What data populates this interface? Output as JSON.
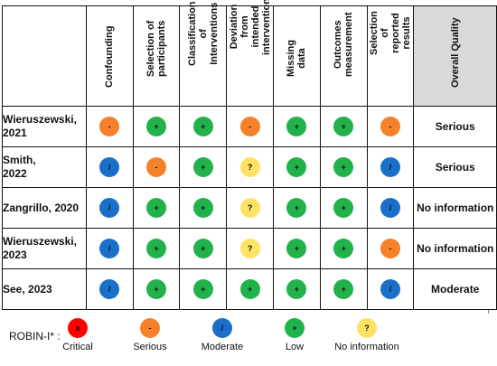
{
  "colors": {
    "critical": "#ff0000",
    "serious": "#f5822a",
    "moderate": "#1a6fc9",
    "low": "#22b24c",
    "no_information": "#fde265",
    "overall_header_bg": "#d9d9d9"
  },
  "columns": [
    "Confounding",
    "Selection of\nparticipants",
    "Classification of\nInterventions",
    "Deviation from\nintended\nintervention",
    "Missing data",
    "Outcomes\nmeasurement",
    "Selection of\nreported results"
  ],
  "overall_header": "Overall Quality",
  "studies": [
    {
      "name": "Wieruszewski,\n2021",
      "ratings": [
        "serious",
        "low",
        "low",
        "serious",
        "low",
        "low",
        "serious"
      ],
      "overall": "Serious"
    },
    {
      "name": "Smith,\n2022",
      "ratings": [
        "moderate",
        "serious",
        "low",
        "no_information",
        "low",
        "low",
        "moderate"
      ],
      "overall": "Serious"
    },
    {
      "name": "Zangrillo, 2020",
      "ratings": [
        "moderate",
        "low",
        "low",
        "no_information",
        "low",
        "low",
        "moderate"
      ],
      "overall": "No information"
    },
    {
      "name": "Wieruszewski,\n2023",
      "ratings": [
        "moderate",
        "low",
        "low",
        "no_information",
        "low",
        "low",
        "serious"
      ],
      "overall": "No information"
    },
    {
      "name": "See, 2023",
      "ratings": [
        "moderate",
        "low",
        "low",
        "low",
        "low",
        "low",
        "moderate"
      ],
      "overall": "Moderate"
    }
  ],
  "symbols": {
    "critical": "x",
    "serious": "-",
    "moderate": "/",
    "low": "+",
    "no_information": "?"
  },
  "legend": {
    "title": "ROBIN-I* :",
    "items": [
      {
        "key": "critical",
        "label": "Critical"
      },
      {
        "key": "serious",
        "label": "Serious"
      },
      {
        "key": "moderate",
        "label": "Moderate"
      },
      {
        "key": "low",
        "label": "Low"
      },
      {
        "key": "no_information",
        "label": "No information"
      }
    ]
  }
}
